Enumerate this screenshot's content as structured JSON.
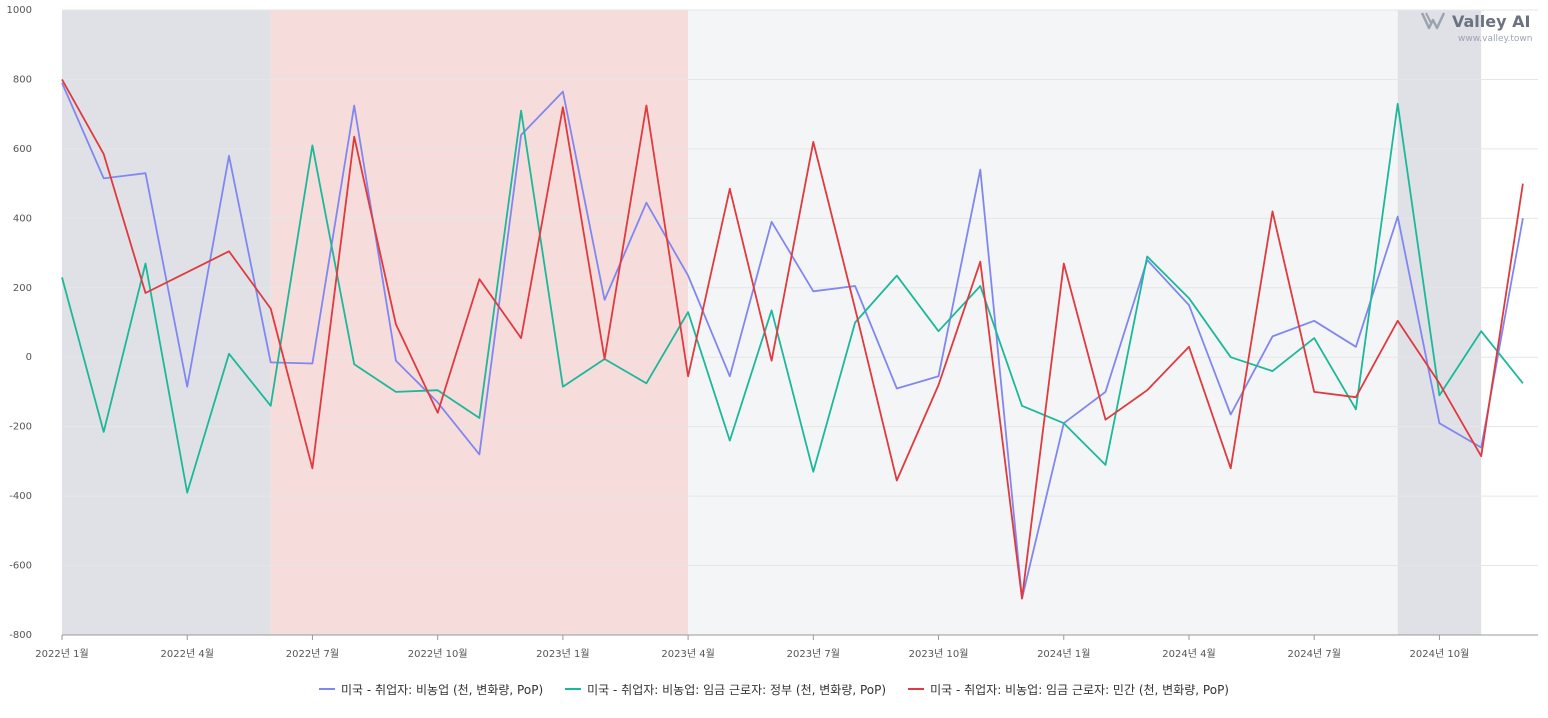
{
  "brand": {
    "name": "Valley AI",
    "url": "www.valley.town"
  },
  "colors": {
    "series1": "#8088f0",
    "series2": "#1cb89a",
    "series3": "#e03a3e",
    "band_gray": "#dfe1e6",
    "band_pink": "#f7dcdc",
    "band_light": "#f4f5f7",
    "grid": "#e6e6e6"
  },
  "chart_data": {
    "type": "line",
    "x": [
      "2022-01",
      "2022-02",
      "2022-03",
      "2022-04",
      "2022-05",
      "2022-06",
      "2022-07",
      "2022-08",
      "2022-09",
      "2022-10",
      "2022-11",
      "2022-12",
      "2023-01",
      "2023-02",
      "2023-03",
      "2023-04",
      "2023-05",
      "2023-06",
      "2023-07",
      "2023-08",
      "2023-09",
      "2023-10",
      "2023-11",
      "2023-12",
      "2024-01",
      "2024-02",
      "2024-03",
      "2024-04",
      "2024-05",
      "2024-06",
      "2024-07",
      "2024-08",
      "2024-09",
      "2024-10",
      "2024-11",
      "2024-12"
    ],
    "x_tick_labels": [
      {
        "x": "2022-01",
        "label": "2022년 1월"
      },
      {
        "x": "2022-04",
        "label": "2022년 4월"
      },
      {
        "x": "2022-07",
        "label": "2022년 7월"
      },
      {
        "x": "2022-10",
        "label": "2022년 10월"
      },
      {
        "x": "2023-01",
        "label": "2023년 1월"
      },
      {
        "x": "2023-04",
        "label": "2023년 4월"
      },
      {
        "x": "2023-07",
        "label": "2023년 7월"
      },
      {
        "x": "2023-10",
        "label": "2023년 10월"
      },
      {
        "x": "2024-01",
        "label": "2024년 1월"
      },
      {
        "x": "2024-04",
        "label": "2024년 4월"
      },
      {
        "x": "2024-07",
        "label": "2024년 7월"
      },
      {
        "x": "2024-10",
        "label": "2024년 10월"
      }
    ],
    "y_ticks": [
      1000,
      800,
      600,
      400,
      200,
      0,
      -200,
      -400,
      -600,
      -800
    ],
    "ylim": [
      -800,
      1000
    ],
    "grid": true,
    "legend_position": "bottom",
    "shaded_periods": [
      {
        "start": "2022-01",
        "end": "2022-06",
        "color_key": "band_gray"
      },
      {
        "start": "2022-06",
        "end": "2023-04",
        "color_key": "band_pink"
      },
      {
        "start": "2023-04",
        "end": "2024-09",
        "color_key": "band_light"
      },
      {
        "start": "2024-09",
        "end": "2024-11",
        "color_key": "band_gray"
      }
    ],
    "series": [
      {
        "name": "미국 - 취업자: 비농업 (천, 변화량, PoP)",
        "color_key": "series1",
        "values": [
          790,
          515,
          530,
          -85,
          580,
          -15,
          -18,
          725,
          -10,
          -130,
          -280,
          640,
          765,
          165,
          445,
          235,
          -55,
          390,
          190,
          205,
          -90,
          -55,
          540,
          -695,
          -190,
          -100,
          280,
          150,
          -165,
          60,
          105,
          30,
          405,
          -190,
          -260,
          400
        ]
      },
      {
        "name": "미국 - 취업자: 비농업: 임금 근로자: 정부 (천, 변화량, PoP)",
        "color_key": "series2",
        "values": [
          230,
          -215,
          270,
          -390,
          10,
          -140,
          610,
          -20,
          -100,
          -95,
          -175,
          710,
          -85,
          -5,
          -75,
          130,
          -240,
          135,
          -330,
          100,
          235,
          75,
          205,
          -140,
          -190,
          -310,
          290,
          170,
          0,
          -40,
          55,
          -150,
          730,
          -110,
          75,
          -75
        ]
      },
      {
        "name": "미국 - 취업자: 비농업: 임금 근로자: 민간 (천, 변화량, PoP)",
        "color_key": "series3",
        "values": [
          800,
          585,
          185,
          245,
          305,
          140,
          -320,
          635,
          95,
          -160,
          225,
          55,
          720,
          -5,
          725,
          -55,
          485,
          -10,
          620,
          140,
          -355,
          -80,
          275,
          -695,
          270,
          -180,
          -95,
          30,
          -320,
          420,
          -100,
          -115,
          105,
          -75,
          -285,
          500
        ]
      }
    ]
  }
}
